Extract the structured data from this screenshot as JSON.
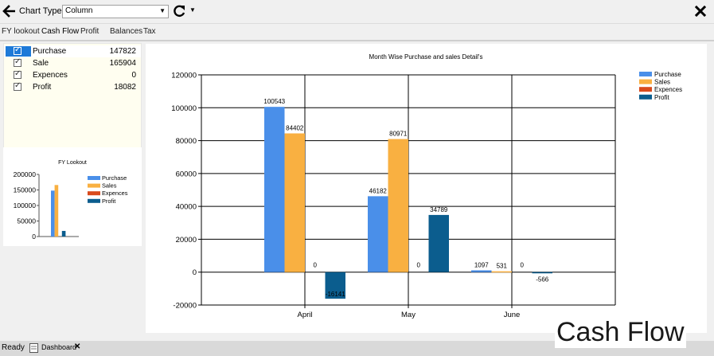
{
  "toolbar": {
    "chart_type_label": "Chart Type",
    "chart_type_value": "Column"
  },
  "tabs": [
    {
      "label": "FY lookout"
    },
    {
      "label": "Cash Flow"
    },
    {
      "label": "Profit"
    },
    {
      "label": "Balances"
    },
    {
      "label": "Tax"
    }
  ],
  "checklist": [
    {
      "label": "Purchase",
      "value": "147822",
      "checked": true,
      "selected": true
    },
    {
      "label": "Sale",
      "value": "165904",
      "checked": true,
      "selected": false
    },
    {
      "label": "Expences",
      "value": "0",
      "checked": true,
      "selected": false
    },
    {
      "label": "Profit",
      "value": "18082",
      "checked": true,
      "selected": false
    }
  ],
  "status": {
    "text": "Ready",
    "dashboard_tab": "Dashboard"
  },
  "caption": "Cash Flow",
  "colors": {
    "purchase": "#4a8fe9",
    "sales": "#f9b041",
    "expences": "#d94a1c",
    "profit": "#0b5d8e"
  },
  "chart_data": [
    {
      "type": "bar",
      "title": "FY Lookout",
      "categories": [
        ""
      ],
      "series": [
        {
          "name": "Purchase",
          "values": [
            147822
          ]
        },
        {
          "name": "Sales",
          "values": [
            165904
          ]
        },
        {
          "name": "Expences",
          "values": [
            0
          ]
        },
        {
          "name": "Profit",
          "values": [
            18082
          ]
        }
      ],
      "ylim": [
        0,
        200000
      ],
      "yticks": [
        "200000",
        "150000",
        "100000",
        "50000",
        "0"
      ],
      "legend": "right"
    },
    {
      "type": "bar",
      "title": "Month Wise Purchase and sales Detail's",
      "categories": [
        "April",
        "May",
        "June"
      ],
      "series": [
        {
          "name": "Purchase",
          "values": [
            100543,
            46182,
            1097
          ]
        },
        {
          "name": "Sales",
          "values": [
            84402,
            80971,
            531
          ]
        },
        {
          "name": "Expences",
          "values": [
            0,
            0,
            0
          ]
        },
        {
          "name": "Profit",
          "values": [
            -16141,
            34789,
            -566
          ]
        }
      ],
      "data_labels": [
        [
          "100543",
          "84402",
          "0",
          "-16141"
        ],
        [
          "46182",
          "80971",
          "0",
          "34789"
        ],
        [
          "1097",
          "531",
          "0",
          "-566"
        ]
      ],
      "ylim": [
        -20000,
        120000
      ],
      "yticks": [
        "120000",
        "100000",
        "80000",
        "60000",
        "40000",
        "20000",
        "0",
        "-20000"
      ],
      "grid": true,
      "legend": "top-right"
    }
  ]
}
